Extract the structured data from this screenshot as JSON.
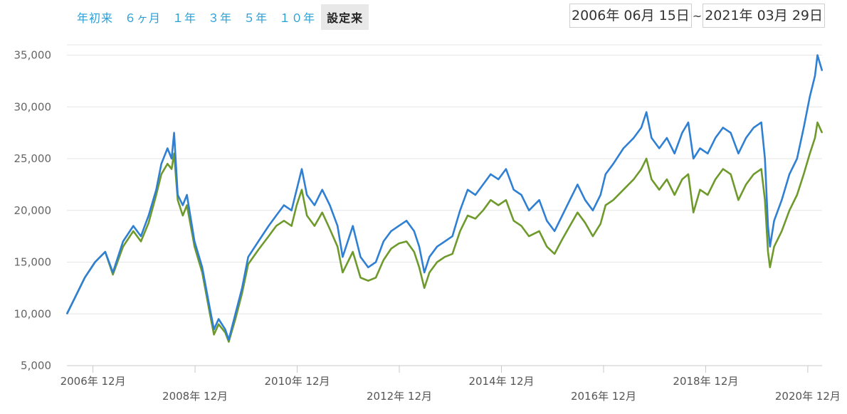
{
  "period_selector": {
    "buttons": [
      {
        "label": "年初来",
        "active": false
      },
      {
        "label": "６ヶ月",
        "active": false
      },
      {
        "label": "１年",
        "active": false
      },
      {
        "label": "３年",
        "active": false
      },
      {
        "label": "５年",
        "active": false
      },
      {
        "label": "１０年",
        "active": false
      },
      {
        "label": "設定来",
        "active": true
      }
    ]
  },
  "date_range": {
    "start": "2006年 06月 15日",
    "separator": "~",
    "end": "2021年 03月 29日"
  },
  "colors": {
    "series_blue": "#2f7fd3",
    "series_green": "#6e9a2c",
    "grid": "#e6e6e6",
    "accent": "#2a9fd6"
  },
  "chart_data": {
    "type": "line",
    "title": "",
    "xlabel": "",
    "ylabel": "",
    "ylim": [
      5000,
      36000
    ],
    "x_range": [
      2006.45,
      2021.24
    ],
    "yticks": [
      5000,
      10000,
      15000,
      20000,
      25000,
      30000,
      35000
    ],
    "ytick_labels": [
      "5,000",
      "10,000",
      "15,000",
      "20,000",
      "25,000",
      "30,000",
      "35,000"
    ],
    "xticks": [
      {
        "x": 2006.96,
        "label": "2006年 12月"
      },
      {
        "x": 2008.96,
        "label": "2008年 12月"
      },
      {
        "x": 2010.96,
        "label": "2010年 12月"
      },
      {
        "x": 2012.96,
        "label": "2012年 12月"
      },
      {
        "x": 2014.96,
        "label": "2014年 12月"
      },
      {
        "x": 2016.96,
        "label": "2016年 12月"
      },
      {
        "x": 2018.96,
        "label": "2018年 12月"
      },
      {
        "x": 2020.96,
        "label": "2020年 12月"
      }
    ],
    "grid": true,
    "legend": "none",
    "series": [
      {
        "color": "#2f7fd3",
        "points": [
          [
            2006.45,
            10000
          ],
          [
            2006.6,
            11500
          ],
          [
            2006.8,
            13500
          ],
          [
            2007.0,
            15000
          ],
          [
            2007.2,
            16000
          ],
          [
            2007.35,
            14000
          ],
          [
            2007.55,
            17000
          ],
          [
            2007.75,
            18500
          ],
          [
            2007.9,
            17500
          ],
          [
            2008.05,
            19500
          ],
          [
            2008.2,
            22000
          ],
          [
            2008.3,
            24500
          ],
          [
            2008.42,
            26000
          ],
          [
            2008.5,
            25000
          ],
          [
            2008.55,
            27500
          ],
          [
            2008.62,
            21500
          ],
          [
            2008.72,
            20500
          ],
          [
            2008.8,
            21500
          ],
          [
            2008.95,
            17000
          ],
          [
            2009.1,
            14500
          ],
          [
            2009.25,
            10500
          ],
          [
            2009.33,
            8500
          ],
          [
            2009.42,
            9500
          ],
          [
            2009.55,
            8500
          ],
          [
            2009.62,
            7500
          ],
          [
            2009.75,
            10000
          ],
          [
            2009.88,
            12500
          ],
          [
            2010.0,
            15500
          ],
          [
            2010.2,
            17000
          ],
          [
            2010.4,
            18500
          ],
          [
            2010.55,
            19500
          ],
          [
            2010.7,
            20500
          ],
          [
            2010.85,
            20000
          ],
          [
            2010.95,
            22000
          ],
          [
            2011.05,
            24000
          ],
          [
            2011.15,
            21500
          ],
          [
            2011.3,
            20500
          ],
          [
            2011.45,
            22000
          ],
          [
            2011.6,
            20500
          ],
          [
            2011.75,
            18500
          ],
          [
            2011.85,
            15500
          ],
          [
            2011.95,
            17000
          ],
          [
            2012.05,
            18500
          ],
          [
            2012.2,
            15500
          ],
          [
            2012.35,
            14500
          ],
          [
            2012.5,
            15000
          ],
          [
            2012.65,
            17000
          ],
          [
            2012.8,
            18000
          ],
          [
            2012.95,
            18500
          ],
          [
            2013.1,
            19000
          ],
          [
            2013.25,
            18000
          ],
          [
            2013.35,
            16500
          ],
          [
            2013.45,
            14000
          ],
          [
            2013.55,
            15500
          ],
          [
            2013.7,
            16500
          ],
          [
            2013.85,
            17000
          ],
          [
            2014.0,
            17500
          ],
          [
            2014.15,
            20000
          ],
          [
            2014.3,
            22000
          ],
          [
            2014.45,
            21500
          ],
          [
            2014.6,
            22500
          ],
          [
            2014.75,
            23500
          ],
          [
            2014.9,
            23000
          ],
          [
            2015.05,
            24000
          ],
          [
            2015.2,
            22000
          ],
          [
            2015.35,
            21500
          ],
          [
            2015.5,
            20000
          ],
          [
            2015.7,
            21000
          ],
          [
            2015.85,
            19000
          ],
          [
            2016.0,
            18000
          ],
          [
            2016.15,
            19500
          ],
          [
            2016.3,
            21000
          ],
          [
            2016.45,
            22500
          ],
          [
            2016.6,
            21000
          ],
          [
            2016.75,
            20000
          ],
          [
            2016.9,
            21500
          ],
          [
            2017.0,
            23500
          ],
          [
            2017.15,
            24500
          ],
          [
            2017.35,
            26000
          ],
          [
            2017.55,
            27000
          ],
          [
            2017.7,
            28000
          ],
          [
            2017.8,
            29500
          ],
          [
            2017.9,
            27000
          ],
          [
            2018.05,
            26000
          ],
          [
            2018.2,
            27000
          ],
          [
            2018.35,
            25500
          ],
          [
            2018.5,
            27500
          ],
          [
            2018.62,
            28500
          ],
          [
            2018.72,
            25000
          ],
          [
            2018.85,
            26000
          ],
          [
            2019.0,
            25500
          ],
          [
            2019.15,
            27000
          ],
          [
            2019.3,
            28000
          ],
          [
            2019.45,
            27500
          ],
          [
            2019.6,
            25500
          ],
          [
            2019.75,
            27000
          ],
          [
            2019.9,
            28000
          ],
          [
            2020.05,
            28500
          ],
          [
            2020.12,
            25000
          ],
          [
            2020.18,
            18500
          ],
          [
            2020.22,
            16500
          ],
          [
            2020.3,
            19000
          ],
          [
            2020.45,
            21000
          ],
          [
            2020.6,
            23500
          ],
          [
            2020.75,
            25000
          ],
          [
            2020.88,
            28000
          ],
          [
            2021.0,
            31000
          ],
          [
            2021.1,
            33000
          ],
          [
            2021.15,
            35000
          ],
          [
            2021.24,
            33500
          ]
        ]
      },
      {
        "color": "#6e9a2c",
        "points": [
          [
            2006.45,
            10000
          ],
          [
            2006.6,
            11500
          ],
          [
            2006.8,
            13500
          ],
          [
            2007.0,
            15000
          ],
          [
            2007.2,
            16000
          ],
          [
            2007.35,
            13800
          ],
          [
            2007.55,
            16500
          ],
          [
            2007.75,
            18000
          ],
          [
            2007.9,
            17000
          ],
          [
            2008.05,
            18800
          ],
          [
            2008.2,
            21500
          ],
          [
            2008.3,
            23500
          ],
          [
            2008.42,
            24500
          ],
          [
            2008.5,
            24000
          ],
          [
            2008.55,
            25500
          ],
          [
            2008.62,
            21000
          ],
          [
            2008.72,
            19500
          ],
          [
            2008.8,
            20500
          ],
          [
            2008.95,
            16500
          ],
          [
            2009.1,
            14000
          ],
          [
            2009.25,
            10000
          ],
          [
            2009.33,
            8000
          ],
          [
            2009.42,
            9000
          ],
          [
            2009.55,
            8200
          ],
          [
            2009.62,
            7300
          ],
          [
            2009.75,
            9500
          ],
          [
            2009.88,
            12000
          ],
          [
            2010.0,
            14800
          ],
          [
            2010.2,
            16200
          ],
          [
            2010.4,
            17500
          ],
          [
            2010.55,
            18500
          ],
          [
            2010.7,
            19000
          ],
          [
            2010.85,
            18500
          ],
          [
            2010.95,
            20500
          ],
          [
            2011.05,
            22000
          ],
          [
            2011.15,
            19500
          ],
          [
            2011.3,
            18500
          ],
          [
            2011.45,
            19800
          ],
          [
            2011.6,
            18200
          ],
          [
            2011.75,
            16500
          ],
          [
            2011.85,
            14000
          ],
          [
            2011.95,
            15000
          ],
          [
            2012.05,
            16000
          ],
          [
            2012.2,
            13500
          ],
          [
            2012.35,
            13200
          ],
          [
            2012.5,
            13500
          ],
          [
            2012.65,
            15200
          ],
          [
            2012.8,
            16300
          ],
          [
            2012.95,
            16800
          ],
          [
            2013.1,
            17000
          ],
          [
            2013.25,
            16000
          ],
          [
            2013.35,
            14500
          ],
          [
            2013.45,
            12500
          ],
          [
            2013.55,
            14000
          ],
          [
            2013.7,
            15000
          ],
          [
            2013.85,
            15500
          ],
          [
            2014.0,
            15800
          ],
          [
            2014.15,
            18000
          ],
          [
            2014.3,
            19500
          ],
          [
            2014.45,
            19200
          ],
          [
            2014.6,
            20000
          ],
          [
            2014.75,
            21000
          ],
          [
            2014.9,
            20500
          ],
          [
            2015.05,
            21000
          ],
          [
            2015.2,
            19000
          ],
          [
            2015.35,
            18500
          ],
          [
            2015.5,
            17500
          ],
          [
            2015.7,
            18000
          ],
          [
            2015.85,
            16500
          ],
          [
            2016.0,
            15800
          ],
          [
            2016.15,
            17200
          ],
          [
            2016.3,
            18500
          ],
          [
            2016.45,
            19800
          ],
          [
            2016.6,
            18800
          ],
          [
            2016.75,
            17500
          ],
          [
            2016.9,
            18700
          ],
          [
            2017.0,
            20500
          ],
          [
            2017.15,
            21000
          ],
          [
            2017.35,
            22000
          ],
          [
            2017.55,
            23000
          ],
          [
            2017.7,
            24000
          ],
          [
            2017.8,
            25000
          ],
          [
            2017.9,
            23000
          ],
          [
            2018.05,
            22000
          ],
          [
            2018.2,
            23000
          ],
          [
            2018.35,
            21500
          ],
          [
            2018.5,
            23000
          ],
          [
            2018.62,
            23500
          ],
          [
            2018.72,
            19800
          ],
          [
            2018.85,
            22000
          ],
          [
            2019.0,
            21500
          ],
          [
            2019.15,
            23000
          ],
          [
            2019.3,
            24000
          ],
          [
            2019.45,
            23500
          ],
          [
            2019.6,
            21000
          ],
          [
            2019.75,
            22500
          ],
          [
            2019.9,
            23500
          ],
          [
            2020.05,
            24000
          ],
          [
            2020.12,
            21000
          ],
          [
            2020.18,
            16000
          ],
          [
            2020.22,
            14500
          ],
          [
            2020.3,
            16500
          ],
          [
            2020.45,
            18000
          ],
          [
            2020.6,
            20000
          ],
          [
            2020.75,
            21500
          ],
          [
            2020.88,
            23500
          ],
          [
            2021.0,
            25500
          ],
          [
            2021.1,
            27000
          ],
          [
            2021.15,
            28500
          ],
          [
            2021.24,
            27500
          ]
        ]
      }
    ]
  }
}
